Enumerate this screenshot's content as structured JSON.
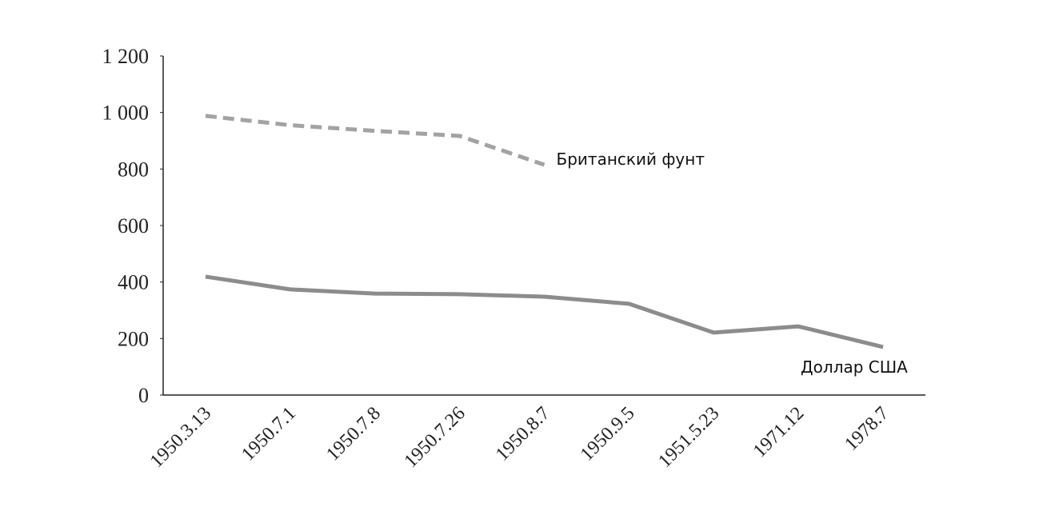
{
  "chart_data": {
    "type": "line",
    "categories": [
      "1950.3.13",
      "1950.7.1",
      "1950.7.8",
      "1950.7.26",
      "1950.8.7",
      "1950.9.5",
      "1951.5.23",
      "1971.12",
      "1978.7"
    ],
    "series": [
      {
        "name": "Британский фунт",
        "color": "#a3a3a3",
        "dashed": true,
        "values": [
          988,
          955,
          935,
          917,
          815,
          null,
          null,
          null,
          null
        ]
      },
      {
        "name": "Доллар США",
        "color": "#8c8c8c",
        "dashed": false,
        "values": [
          419,
          374,
          359,
          357,
          348,
          323,
          221,
          243,
          170
        ]
      }
    ],
    "ylim": [
      0,
      1200
    ],
    "yticks": [
      0,
      200,
      400,
      600,
      800,
      {
        "value": 1000,
        "label": "1 000"
      },
      {
        "value": 1200,
        "label": "1 200"
      }
    ],
    "grid": false
  }
}
